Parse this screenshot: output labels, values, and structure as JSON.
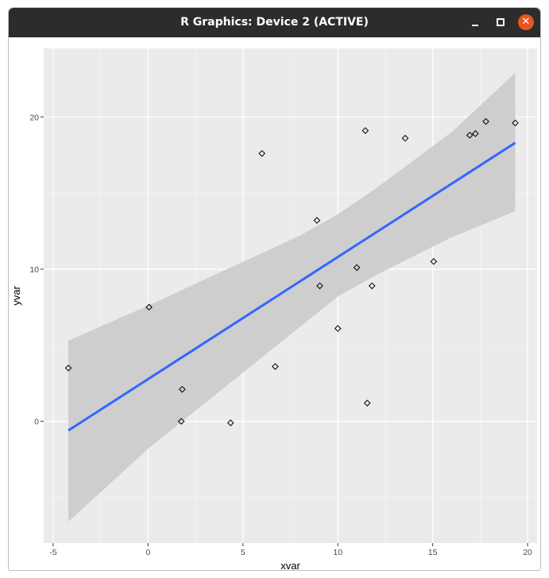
{
  "window": {
    "title": "R Graphics: Device 2 (ACTIVE)",
    "minimize_icon": "minimize-icon",
    "maximize_icon": "maximize-icon",
    "close_icon": "close-icon",
    "close_glyph": "✕"
  },
  "chart_data": {
    "type": "scatter",
    "xlabel": "xvar",
    "ylabel": "yvar",
    "xlim": [
      -5.5,
      20.5
    ],
    "ylim": [
      -8,
      24.5
    ],
    "x_ticks": [
      -5,
      0,
      5,
      10,
      15,
      20
    ],
    "x_tick_labels": [
      "-5",
      "0",
      "5",
      "10",
      "15",
      "20"
    ],
    "y_ticks": [
      0,
      10,
      20
    ],
    "y_tick_labels": [
      "0",
      "10",
      "20"
    ],
    "grid": true,
    "points": [
      {
        "x": -4.2,
        "y": 3.5
      },
      {
        "x": 0.05,
        "y": 7.5
      },
      {
        "x": 1.8,
        "y": 2.1
      },
      {
        "x": 1.75,
        "y": 0.0
      },
      {
        "x": 4.35,
        "y": -0.1
      },
      {
        "x": 6.0,
        "y": 17.6
      },
      {
        "x": 6.7,
        "y": 3.6
      },
      {
        "x": 8.9,
        "y": 13.2
      },
      {
        "x": 9.05,
        "y": 8.9
      },
      {
        "x": 10.0,
        "y": 6.1
      },
      {
        "x": 11.0,
        "y": 10.1
      },
      {
        "x": 11.45,
        "y": 19.1
      },
      {
        "x": 11.55,
        "y": 1.2
      },
      {
        "x": 11.8,
        "y": 8.9
      },
      {
        "x": 13.55,
        "y": 18.6
      },
      {
        "x": 15.05,
        "y": 10.5
      },
      {
        "x": 16.95,
        "y": 18.8
      },
      {
        "x": 17.25,
        "y": 18.9
      },
      {
        "x": 17.8,
        "y": 19.7
      },
      {
        "x": 19.35,
        "y": 19.6
      }
    ],
    "fit_line": {
      "x": [
        -4.2,
        19.35
      ],
      "y": [
        -0.6,
        18.3
      ],
      "color": "#3366ff"
    },
    "confidence_band": {
      "x": [
        -4.2,
        0,
        4,
        8,
        10,
        12,
        16,
        19.35
      ],
      "upper": [
        5.3,
        7.6,
        9.9,
        12.2,
        13.6,
        15.3,
        19.0,
        22.9
      ],
      "lower": [
        -6.6,
        -1.8,
        2.2,
        6.2,
        8.2,
        9.6,
        12.1,
        13.8
      ],
      "color": "#cccccc"
    },
    "panel_background": "#ebebeb"
  }
}
